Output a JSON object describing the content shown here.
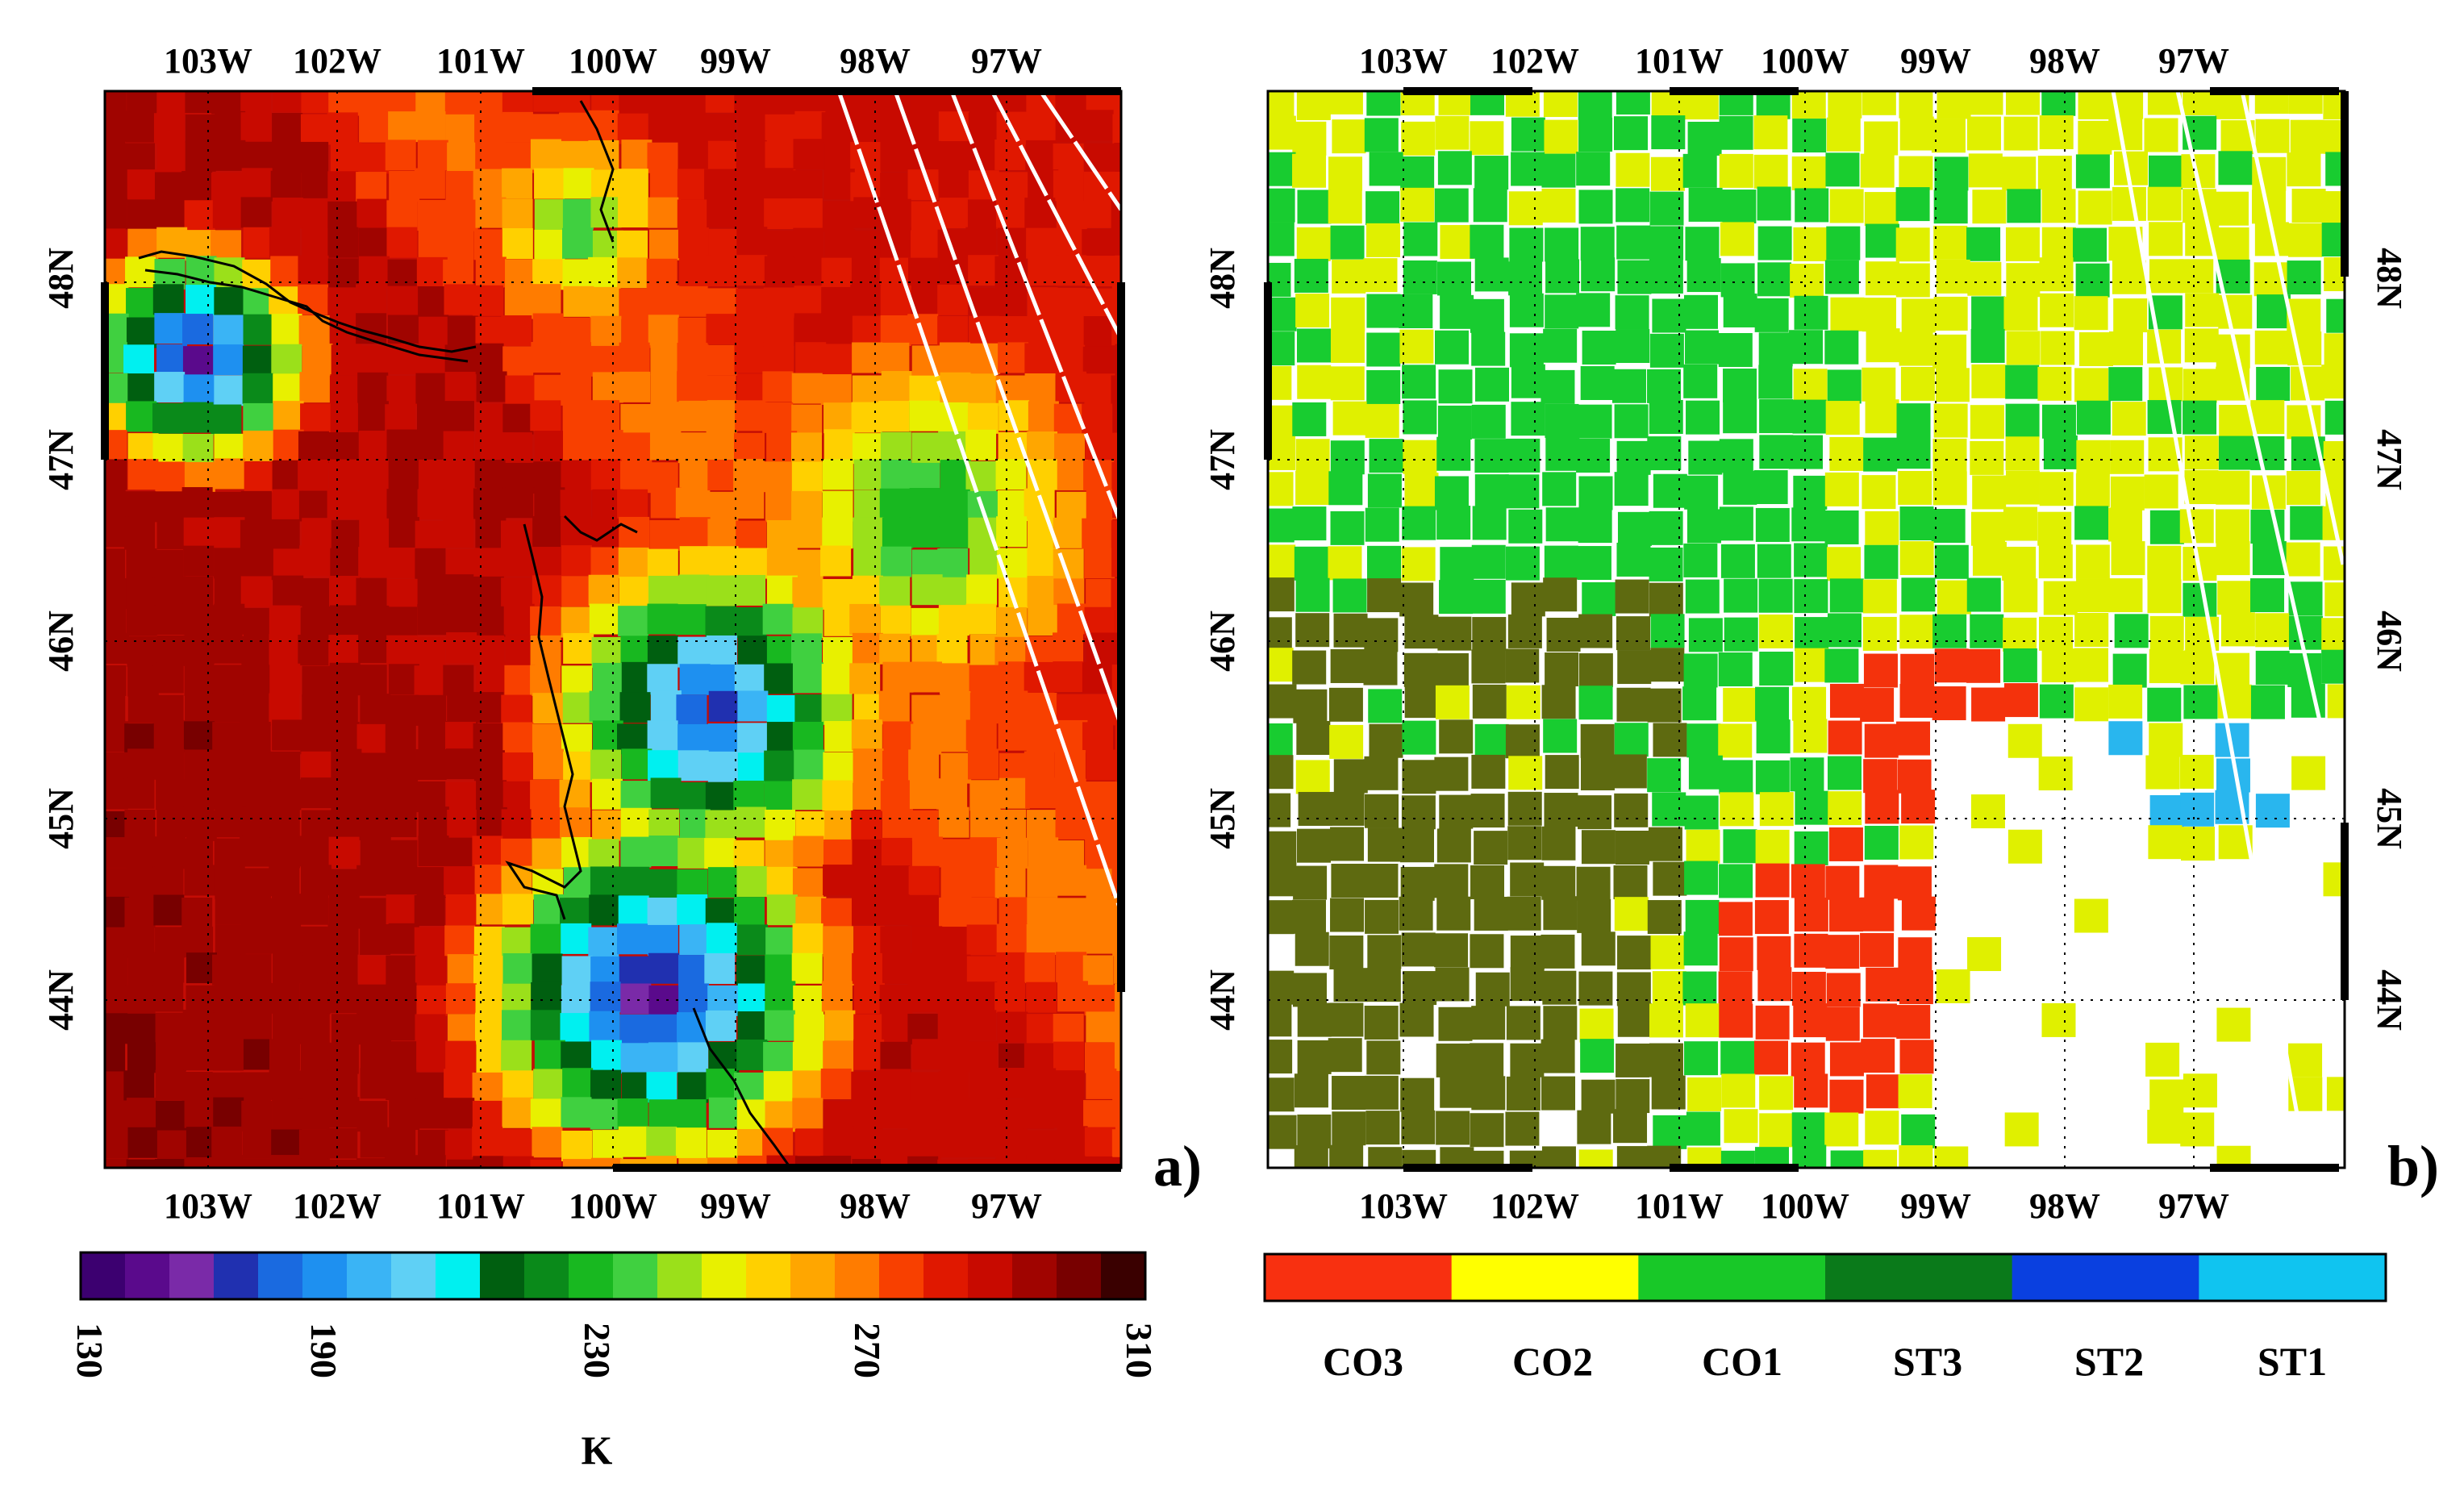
{
  "panel_a": {
    "label": "a)",
    "lon_labels": [
      "103W",
      "102W",
      "101W",
      "100W",
      "99W",
      "98W",
      "97W"
    ],
    "lat_labels": [
      "48N",
      "47N",
      "46N",
      "45N",
      "44N"
    ],
    "colorbar": {
      "ticks": [
        "130",
        "190",
        "230",
        "270",
        "310"
      ],
      "min": 130,
      "max": 310,
      "unit": "K",
      "colors": [
        "#3c0070",
        "#5a0a8c",
        "#7a2aa8",
        "#2030b0",
        "#1a6ae0",
        "#1e90f0",
        "#3ab4f5",
        "#5fd0f5",
        "#00f0f0",
        "#005f10",
        "#0a8a1a",
        "#18b820",
        "#40d040",
        "#9be01a",
        "#e8f000",
        "#ffd000",
        "#ffa600",
        "#ff7c00",
        "#f84000",
        "#e01800",
        "#c80a00",
        "#a00400",
        "#780000",
        "#3a0000"
      ]
    }
  },
  "panel_b": {
    "label": "b)",
    "lon_labels": [
      "103W",
      "102W",
      "101W",
      "100W",
      "99W",
      "98W",
      "97W"
    ],
    "lat_labels": [
      "48N",
      "47N",
      "46N",
      "45N",
      "44N"
    ],
    "legend": [
      {
        "label": "CO3",
        "color": "#f83010"
      },
      {
        "label": "CO2",
        "color": "#ffff00"
      },
      {
        "label": "CO1",
        "color": "#18c828"
      },
      {
        "label": "ST3",
        "color": "#0a7a1a"
      },
      {
        "label": "ST2",
        "color": "#0a40e0"
      },
      {
        "label": "ST1",
        "color": "#10c4f0"
      }
    ],
    "class_colors": {
      "CO3": "#f4320c",
      "CO2": "#e0f000",
      "CO1": "#18cc30",
      "ST3": "#5e6a10",
      "ST2": "#0a52b0",
      "ST1": "#29b6ee",
      "clear": "#ffffff"
    }
  }
}
